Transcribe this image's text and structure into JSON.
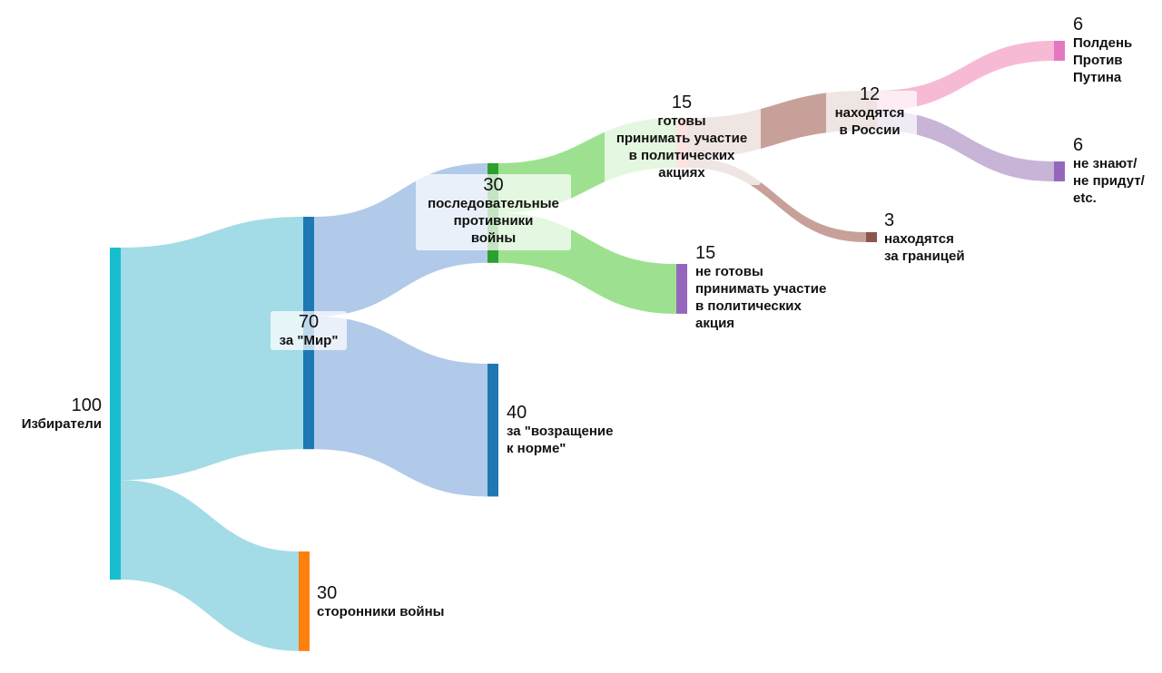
{
  "chart_data": {
    "type": "sankey",
    "nodes": [
      {
        "id": "voters",
        "value": "100",
        "label": "Избиратели",
        "color": "#17becf"
      },
      {
        "id": "peace",
        "value": "70",
        "label": "за \"Мир\"",
        "color": "#1f77b4"
      },
      {
        "id": "war",
        "value": "30",
        "label": "сторонники войны",
        "color": "#ff7f0e"
      },
      {
        "id": "opponents",
        "value": "30",
        "label": "последовательные\nпротивники\nвойны",
        "color": "#2ca02c"
      },
      {
        "id": "normal",
        "value": "40",
        "label": "за \"возращение\nк норме\"",
        "color": "#1f77b4"
      },
      {
        "id": "ready",
        "value": "15",
        "label": "готовы\nпринимать участие\nв политических\nакциях",
        "color": "#ff9896"
      },
      {
        "id": "notready",
        "value": "15",
        "label": "не готовы\nпринимать участие\nв политических\nакция",
        "color": "#9467bd"
      },
      {
        "id": "russia",
        "value": "12",
        "label": "находятся\nв России",
        "color": "#c49c94"
      },
      {
        "id": "abroad",
        "value": "3",
        "label": "находятся\nза границей",
        "color": "#8c564b"
      },
      {
        "id": "noon",
        "value": "6",
        "label": "Полдень\nПротив\nПутина",
        "color": "#e377c2"
      },
      {
        "id": "dontknow",
        "value": "6",
        "label": "не знают/\nне придут/\netc.",
        "color": "#9467bd"
      }
    ],
    "links": [
      {
        "source": "voters",
        "target": "peace",
        "value": 70,
        "color": "#9edae5"
      },
      {
        "source": "voters",
        "target": "war",
        "value": 30,
        "color": "#9edae5"
      },
      {
        "source": "peace",
        "target": "opponents",
        "value": 30,
        "color": "#aec7e8"
      },
      {
        "source": "peace",
        "target": "normal",
        "value": 40,
        "color": "#aec7e8"
      },
      {
        "source": "opponents",
        "target": "ready",
        "value": 15,
        "color": "#98df8a"
      },
      {
        "source": "opponents",
        "target": "notready",
        "value": 15,
        "color": "#98df8a"
      },
      {
        "source": "ready",
        "target": "russia",
        "value": 12,
        "color": "#c49c94"
      },
      {
        "source": "ready",
        "target": "abroad",
        "value": 3,
        "color": "#c49c94"
      },
      {
        "source": "russia",
        "target": "noon",
        "value": 6,
        "color": "#f7b6d2"
      },
      {
        "source": "russia",
        "target": "dontknow",
        "value": 6,
        "color": "#c5b0d5"
      }
    ]
  }
}
